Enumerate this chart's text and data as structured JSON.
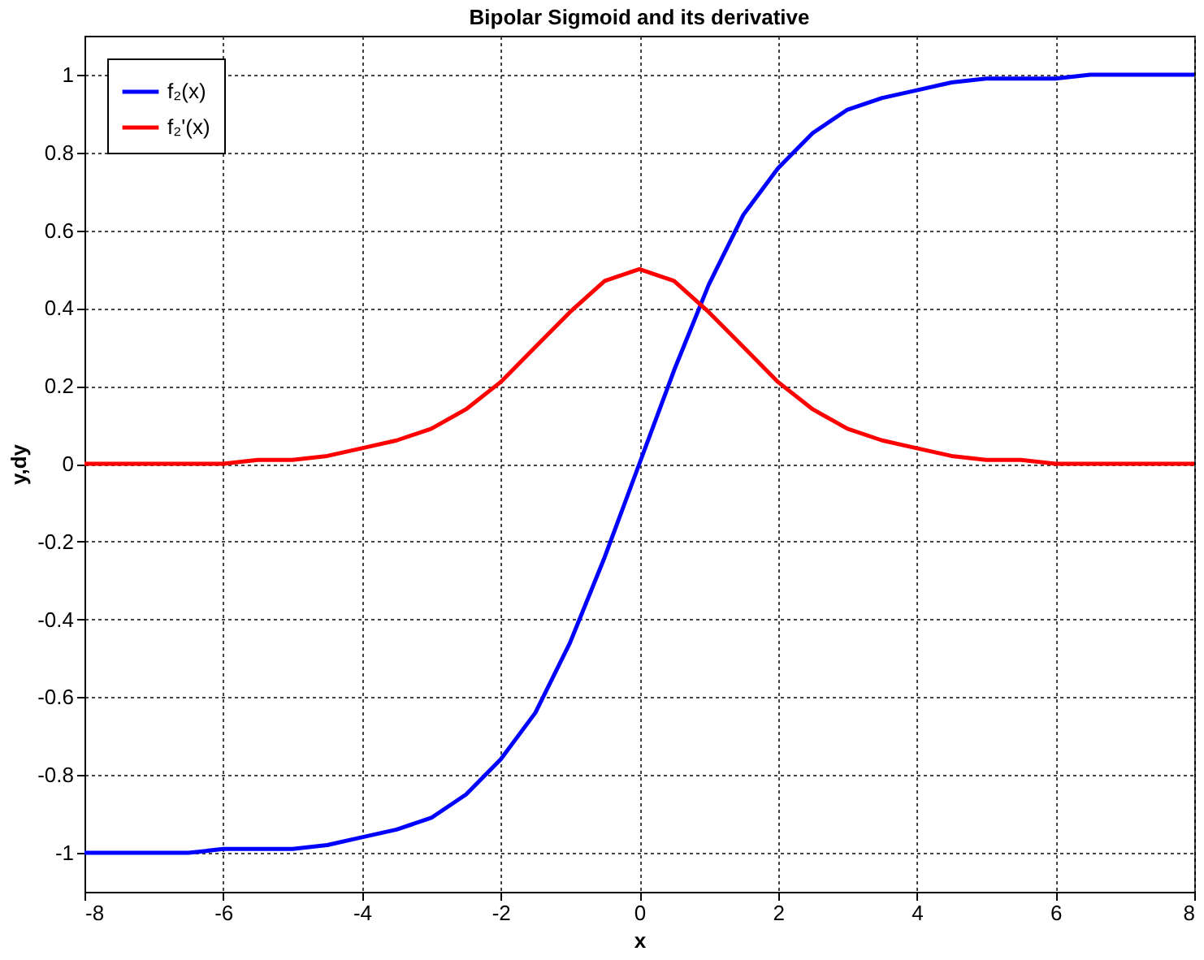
{
  "chart_data": {
    "type": "line",
    "title": "Bipolar Sigmoid and its derivative",
    "xlabel": "x",
    "ylabel": "y,dy",
    "x": [
      -8,
      -7.5,
      -7,
      -6.5,
      -6,
      -5.5,
      -5,
      -4.5,
      -4,
      -3.5,
      -3,
      -2.5,
      -2,
      -1.5,
      -1,
      -0.5,
      0,
      0.5,
      1,
      1.5,
      2,
      2.5,
      3,
      3.5,
      4,
      4.5,
      5,
      5.5,
      6,
      6.5,
      7,
      7.5,
      8
    ],
    "series": [
      {
        "name": "f₂(x)",
        "color": "#0000ff",
        "values": [
          -1.0,
          -1.0,
          -1.0,
          -1.0,
          -0.99,
          -0.99,
          -0.99,
          -0.98,
          -0.96,
          -0.94,
          -0.91,
          -0.85,
          -0.76,
          -0.64,
          -0.46,
          -0.24,
          0,
          0.24,
          0.46,
          0.64,
          0.76,
          0.85,
          0.91,
          0.94,
          0.96,
          0.98,
          0.99,
          0.99,
          0.99,
          1.0,
          1.0,
          1.0,
          1.0
        ]
      },
      {
        "name": "f₂'(x)",
        "color": "#ff0000",
        "values": [
          0,
          0,
          0,
          0,
          0,
          0.01,
          0.01,
          0.02,
          0.04,
          0.06,
          0.09,
          0.14,
          0.21,
          0.3,
          0.39,
          0.47,
          0.5,
          0.47,
          0.39,
          0.3,
          0.21,
          0.14,
          0.09,
          0.06,
          0.04,
          0.02,
          0.01,
          0.01,
          0,
          0,
          0,
          0,
          0
        ]
      }
    ],
    "xlim": [
      -8,
      8
    ],
    "xticks": [
      -8,
      -6,
      -4,
      -2,
      0,
      2,
      4,
      6,
      8
    ],
    "ylim": [
      -1.1,
      1.1
    ],
    "yticks": [
      -1,
      -0.8,
      -0.6,
      -0.4,
      -0.2,
      0,
      0.2,
      0.4,
      0.6,
      0.8,
      1
    ],
    "grid": true,
    "legend": "top left",
    "line_style": "solid",
    "marker": "none"
  }
}
